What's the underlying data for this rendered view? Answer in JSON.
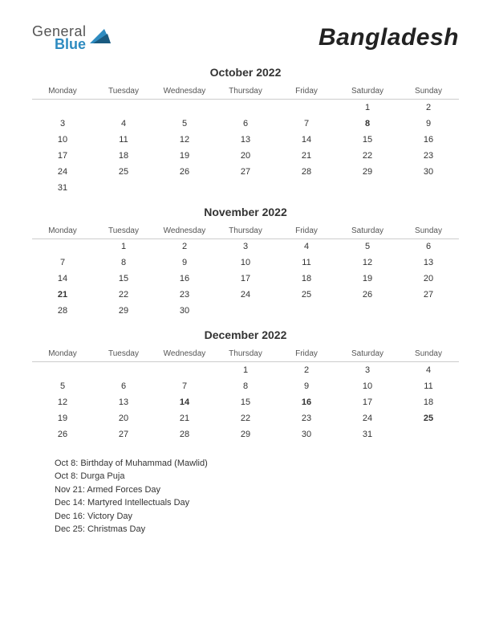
{
  "logo": {
    "word1": "General",
    "word2": "Blue",
    "color_blue": "#2e8bc0",
    "color_gray": "#555555"
  },
  "title": "Bangladesh",
  "day_headers": [
    "Monday",
    "Tuesday",
    "Wednesday",
    "Thursday",
    "Friday",
    "Saturday",
    "Sunday"
  ],
  "colors": {
    "background": "#ffffff",
    "text": "#333333",
    "header_text": "#555555",
    "holiday": "#cc0000",
    "grid_line": "#cccccc"
  },
  "fonts": {
    "title_size": 30,
    "month_size": 14,
    "day_header_size": 10,
    "cell_size": 11,
    "holiday_list_size": 11
  },
  "months": [
    {
      "name": "October 2022",
      "weeks": [
        [
          "",
          "",
          "",
          "",
          "",
          "1",
          "2"
        ],
        [
          "3",
          "4",
          "5",
          "6",
          "7",
          "8",
          "9"
        ],
        [
          "10",
          "11",
          "12",
          "13",
          "14",
          "15",
          "16"
        ],
        [
          "17",
          "18",
          "19",
          "20",
          "21",
          "22",
          "23"
        ],
        [
          "24",
          "25",
          "26",
          "27",
          "28",
          "29",
          "30"
        ],
        [
          "31",
          "",
          "",
          "",
          "",
          "",
          ""
        ]
      ],
      "holidays": [
        "8"
      ]
    },
    {
      "name": "November 2022",
      "weeks": [
        [
          "",
          "1",
          "2",
          "3",
          "4",
          "5",
          "6"
        ],
        [
          "7",
          "8",
          "9",
          "10",
          "11",
          "12",
          "13"
        ],
        [
          "14",
          "15",
          "16",
          "17",
          "18",
          "19",
          "20"
        ],
        [
          "21",
          "22",
          "23",
          "24",
          "25",
          "26",
          "27"
        ],
        [
          "28",
          "29",
          "30",
          "",
          "",
          "",
          ""
        ]
      ],
      "holidays": [
        "21"
      ]
    },
    {
      "name": "December 2022",
      "weeks": [
        [
          "",
          "",
          "",
          "1",
          "2",
          "3",
          "4"
        ],
        [
          "5",
          "6",
          "7",
          "8",
          "9",
          "10",
          "11"
        ],
        [
          "12",
          "13",
          "14",
          "15",
          "16",
          "17",
          "18"
        ],
        [
          "19",
          "20",
          "21",
          "22",
          "23",
          "24",
          "25"
        ],
        [
          "26",
          "27",
          "28",
          "29",
          "30",
          "31",
          ""
        ]
      ],
      "holidays": [
        "14",
        "16",
        "25"
      ]
    }
  ],
  "holiday_list": [
    "Oct 8: Birthday of Muhammad (Mawlid)",
    "Oct 8: Durga Puja",
    "Nov 21: Armed Forces Day",
    "Dec 14: Martyred Intellectuals Day",
    "Dec 16: Victory Day",
    "Dec 25: Christmas Day"
  ]
}
